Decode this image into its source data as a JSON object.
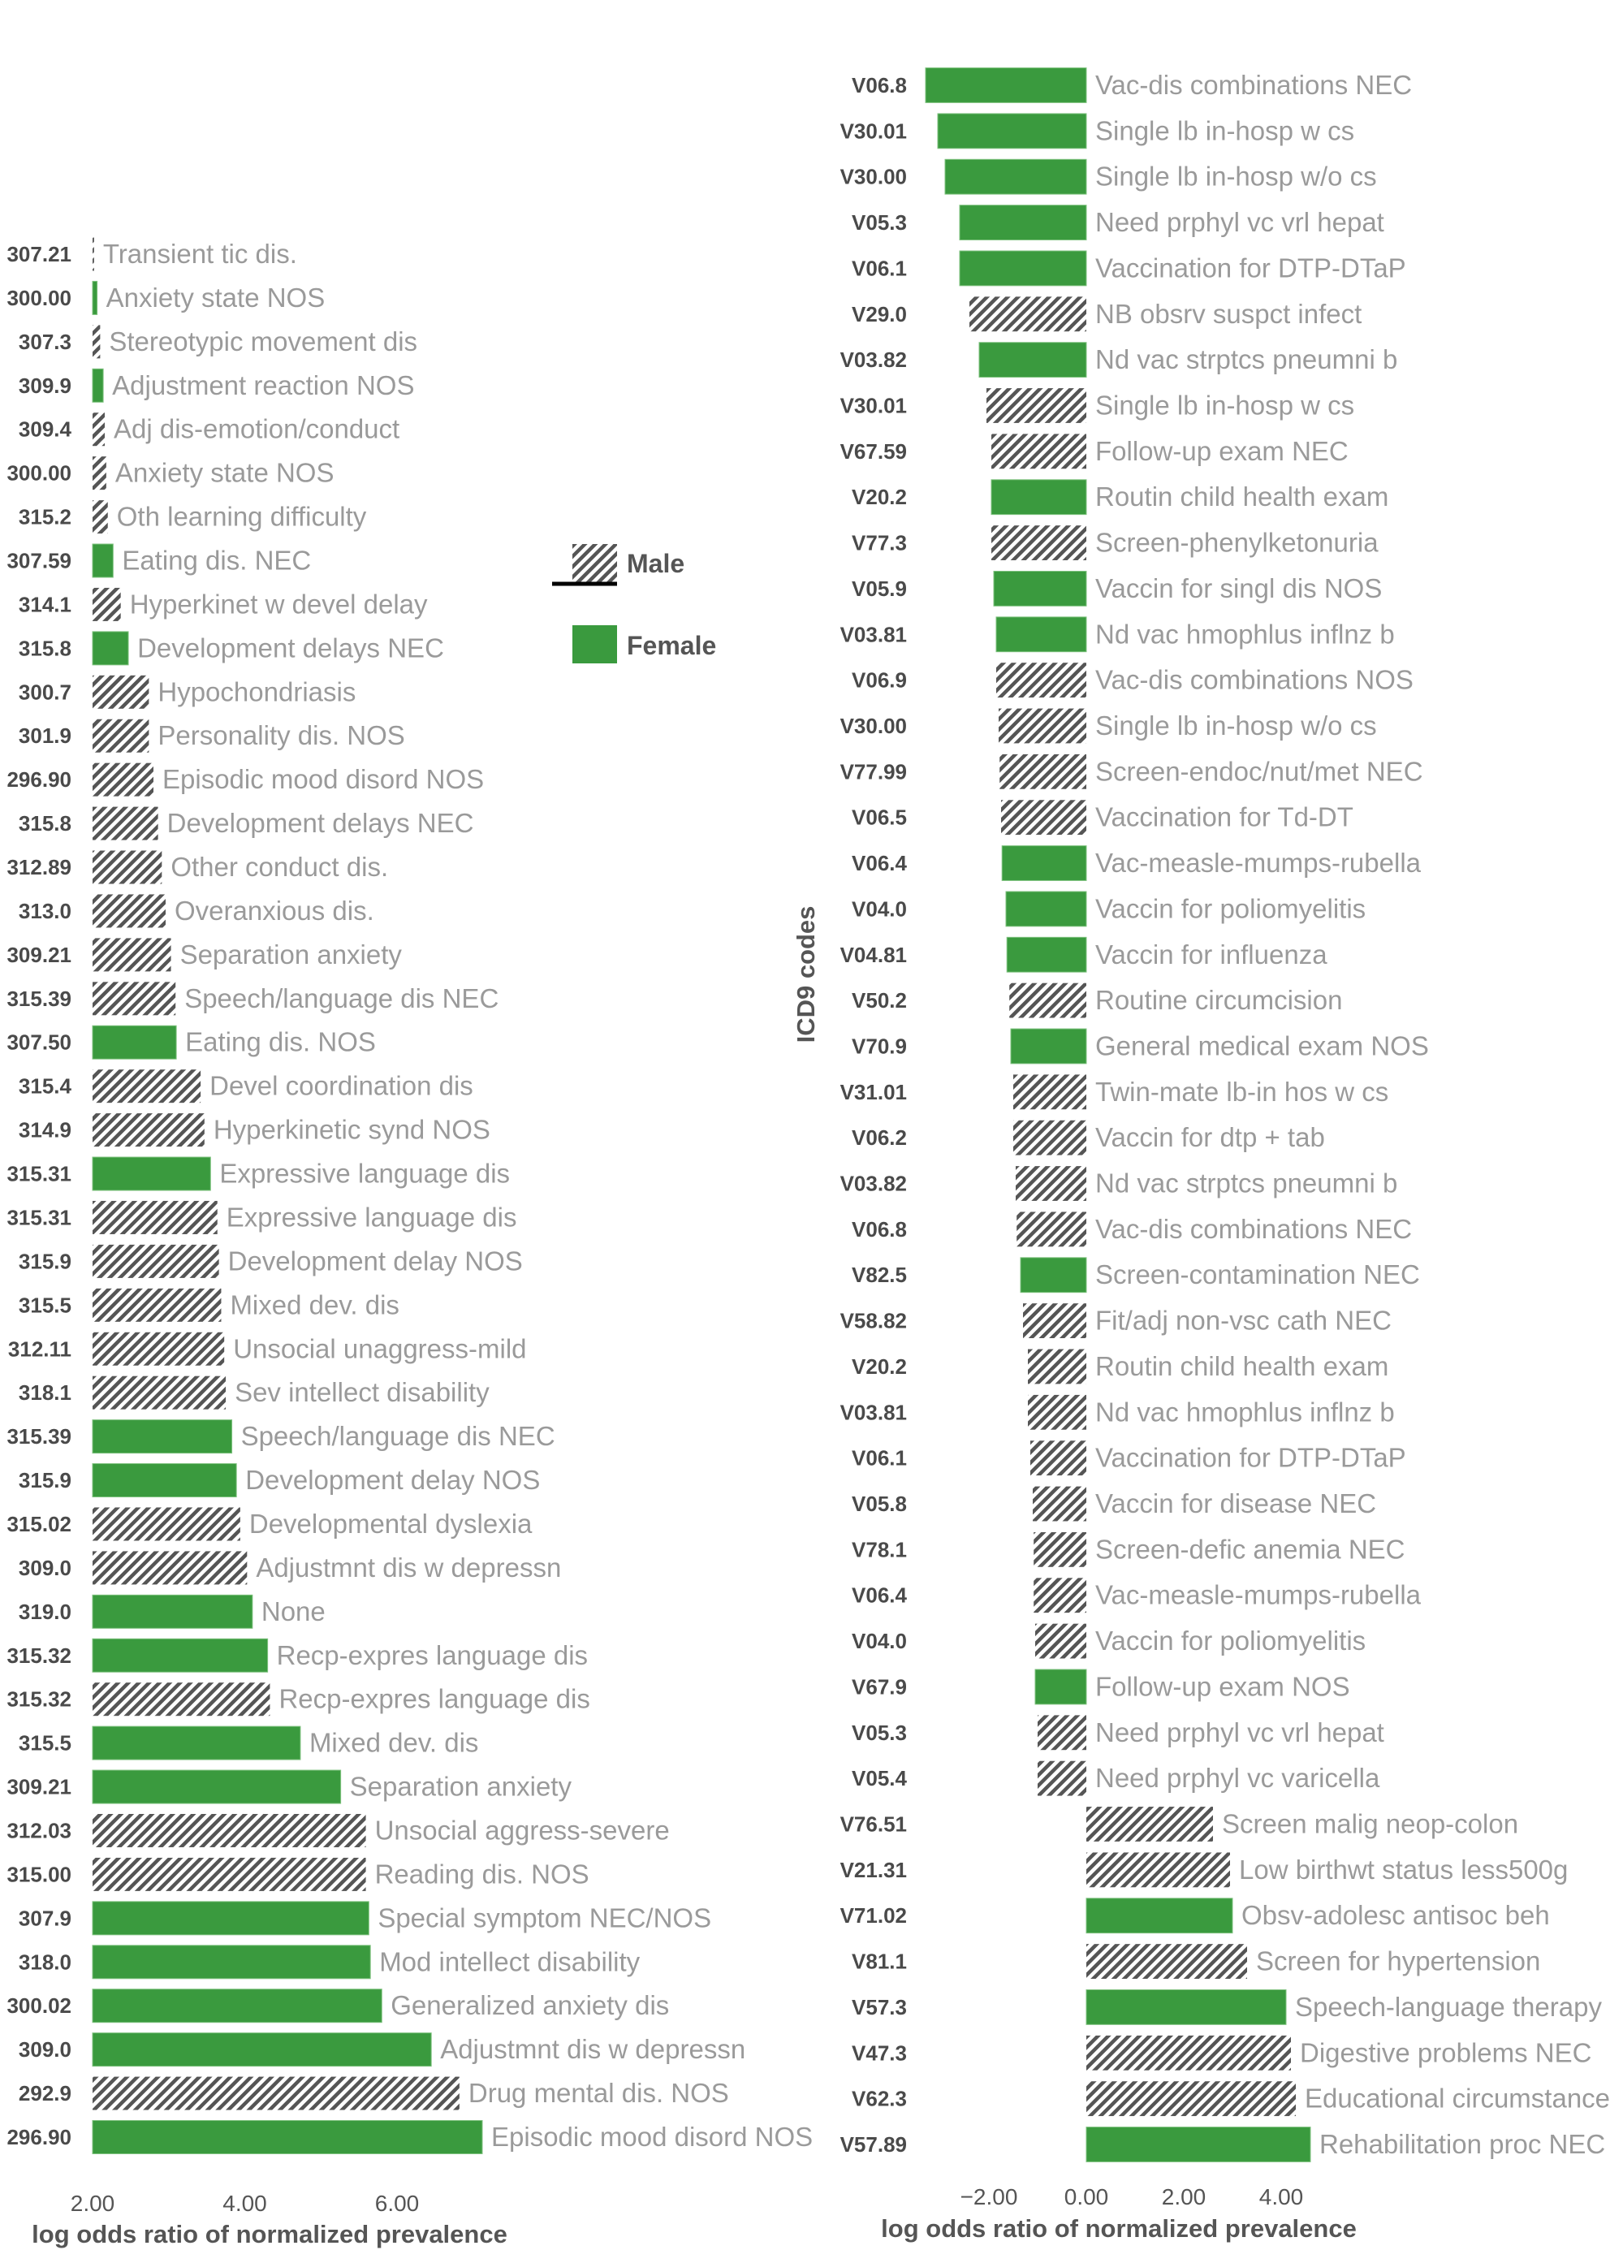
{
  "legend": {
    "male_label": "Male",
    "female_label": "Female",
    "position": "right of left panel, upper-middle"
  },
  "colors": {
    "female": "#3a9a3e",
    "male_hatch": "#555555",
    "code_text": "#4a4a4a",
    "label_text": "#9a9a9a"
  },
  "chart_data": [
    {
      "type": "bar",
      "orientation": "horizontal",
      "xlabel": "log odds ratio of normalized prevalence",
      "x_ticks": [
        "2.00",
        "4.00",
        "6.00"
      ],
      "xlim": [
        2.0,
        7.0
      ],
      "bars": [
        {
          "code": "307.21",
          "label": "Transient tic dis.",
          "sex": "male",
          "value": 2.02
        },
        {
          "code": "300.00",
          "label": "Anxiety state NOS",
          "sex": "female",
          "value": 2.06
        },
        {
          "code": "307.3",
          "label": "Stereotypic movement dis",
          "sex": "male",
          "value": 2.1
        },
        {
          "code": "309.9",
          "label": "Adjustment reaction NOS",
          "sex": "female",
          "value": 2.14
        },
        {
          "code": "309.4",
          "label": "Adj dis-emotion/conduct",
          "sex": "male",
          "value": 2.16
        },
        {
          "code": "300.00",
          "label": "Anxiety state NOS",
          "sex": "male",
          "value": 2.18
        },
        {
          "code": "315.2",
          "label": "Oth learning difficulty",
          "sex": "male",
          "value": 2.2
        },
        {
          "code": "307.59",
          "label": "Eating dis. NEC",
          "sex": "female",
          "value": 2.27
        },
        {
          "code": "314.1",
          "label": "Hyperkinet w devel delay",
          "sex": "male",
          "value": 2.37
        },
        {
          "code": "315.8",
          "label": "Development delays NEC",
          "sex": "female",
          "value": 2.47
        },
        {
          "code": "300.7",
          "label": "Hypochondriasis",
          "sex": "male",
          "value": 2.74
        },
        {
          "code": "301.9",
          "label": "Personality dis. NOS",
          "sex": "male",
          "value": 2.74
        },
        {
          "code": "296.90",
          "label": "Episodic mood disord NOS",
          "sex": "male",
          "value": 2.8
        },
        {
          "code": "315.8",
          "label": "Development delays NEC",
          "sex": "male",
          "value": 2.86
        },
        {
          "code": "312.89",
          "label": "Other conduct dis.",
          "sex": "male",
          "value": 2.91
        },
        {
          "code": "313.0",
          "label": "Overanxious dis.",
          "sex": "male",
          "value": 2.96
        },
        {
          "code": "309.21",
          "label": "Separation anxiety",
          "sex": "male",
          "value": 3.03
        },
        {
          "code": "315.39",
          "label": "Speech/language dis NEC",
          "sex": "male",
          "value": 3.09
        },
        {
          "code": "307.50",
          "label": "Eating dis. NOS",
          "sex": "female",
          "value": 3.1
        },
        {
          "code": "315.4",
          "label": "Devel coordination dis",
          "sex": "male",
          "value": 3.42
        },
        {
          "code": "314.9",
          "label": "Hyperkinetic synd NOS",
          "sex": "male",
          "value": 3.47
        },
        {
          "code": "315.31",
          "label": "Expressive language dis",
          "sex": "female",
          "value": 3.55
        },
        {
          "code": "315.31",
          "label": "Expressive language dis",
          "sex": "male",
          "value": 3.64
        },
        {
          "code": "315.9",
          "label": "Development delay NOS",
          "sex": "male",
          "value": 3.66
        },
        {
          "code": "315.5",
          "label": "Mixed dev. dis",
          "sex": "male",
          "value": 3.69
        },
        {
          "code": "312.11",
          "label": "Unsocial unaggress-mild",
          "sex": "male",
          "value": 3.73
        },
        {
          "code": "318.1",
          "label": "Sev intellect disability",
          "sex": "male",
          "value": 3.75
        },
        {
          "code": "315.39",
          "label": "Speech/language dis NEC",
          "sex": "female",
          "value": 3.83
        },
        {
          "code": "315.9",
          "label": "Development delay NOS",
          "sex": "female",
          "value": 3.89
        },
        {
          "code": "315.02",
          "label": "Developmental dyslexia",
          "sex": "male",
          "value": 3.94
        },
        {
          "code": "309.0",
          "label": "Adjustmnt dis w depressn",
          "sex": "male",
          "value": 4.03
        },
        {
          "code": "319.0",
          "label": "None",
          "sex": "female",
          "value": 4.1
        },
        {
          "code": "315.32",
          "label": "Recp-expres language dis",
          "sex": "female",
          "value": 4.3
        },
        {
          "code": "315.32",
          "label": "Recp-expres language dis",
          "sex": "male",
          "value": 4.33
        },
        {
          "code": "315.5",
          "label": "Mixed dev. dis",
          "sex": "female",
          "value": 4.73
        },
        {
          "code": "309.21",
          "label": "Separation anxiety",
          "sex": "female",
          "value": 5.26
        },
        {
          "code": "312.03",
          "label": "Unsocial aggress-severe",
          "sex": "male",
          "value": 5.59
        },
        {
          "code": "315.00",
          "label": "Reading dis. NOS",
          "sex": "male",
          "value": 5.59
        },
        {
          "code": "307.9",
          "label": "Special symptom NEC/NOS",
          "sex": "female",
          "value": 5.63
        },
        {
          "code": "318.0",
          "label": "Mod intellect disability",
          "sex": "female",
          "value": 5.65
        },
        {
          "code": "300.02",
          "label": "Generalized anxiety dis",
          "sex": "female",
          "value": 5.8
        },
        {
          "code": "309.0",
          "label": "Adjustmnt dis w depressn",
          "sex": "female",
          "value": 6.45
        },
        {
          "code": "292.9",
          "label": "Drug mental dis. NOS",
          "sex": "male",
          "value": 6.82
        },
        {
          "code": "296.90",
          "label": "Episodic mood disord NOS",
          "sex": "female",
          "value": 7.12
        }
      ]
    },
    {
      "type": "bar",
      "orientation": "horizontal",
      "ylabel": "ICD9 codes",
      "xlabel": "log odds ratio of normalized prevalence",
      "x_ticks": [
        "−2.00",
        "0.00",
        "2.00",
        "4.00"
      ],
      "xlim": [
        -3.3,
        5.3
      ],
      "bars": [
        {
          "code": "V06.8",
          "label": "Vac-dis combinations NEC",
          "sex": "female",
          "value": -3.3
        },
        {
          "code": "V30.01",
          "label": "Single lb in-hosp w cs",
          "sex": "female",
          "value": -3.05
        },
        {
          "code": "V30.00",
          "label": "Single lb in-hosp w/o cs",
          "sex": "female",
          "value": -2.9
        },
        {
          "code": "V05.3",
          "label": "Need prphyl vc vrl hepat",
          "sex": "female",
          "value": -2.6
        },
        {
          "code": "V06.1",
          "label": "Vaccination for DTP-DTaP",
          "sex": "female",
          "value": -2.6
        },
        {
          "code": "V29.0",
          "label": "NB obsrv suspct infect",
          "sex": "male",
          "value": -2.4
        },
        {
          "code": "V03.82",
          "label": "Nd vac strptcs pneumni b",
          "sex": "female",
          "value": -2.2
        },
        {
          "code": "V30.01",
          "label": "Single lb in-hosp w cs",
          "sex": "male",
          "value": -2.05
        },
        {
          "code": "V67.59",
          "label": "Follow-up exam NEC",
          "sex": "male",
          "value": -1.95
        },
        {
          "code": "V20.2",
          "label": "Routin child health exam",
          "sex": "female",
          "value": -1.95
        },
        {
          "code": "V77.3",
          "label": "Screen-phenylketonuria",
          "sex": "male",
          "value": -1.95
        },
        {
          "code": "V05.9",
          "label": "Vaccin for singl dis NOS",
          "sex": "female",
          "value": -1.9
        },
        {
          "code": "V03.81",
          "label": "Nd vac hmophlus inflnz b",
          "sex": "female",
          "value": -1.85
        },
        {
          "code": "V06.9",
          "label": "Vac-dis combinations NOS",
          "sex": "male",
          "value": -1.85
        },
        {
          "code": "V30.00",
          "label": "Single lb in-hosp w/o cs",
          "sex": "male",
          "value": -1.8
        },
        {
          "code": "V77.99",
          "label": "Screen-endoc/nut/met NEC",
          "sex": "male",
          "value": -1.78
        },
        {
          "code": "V06.5",
          "label": "Vaccination for Td-DT",
          "sex": "male",
          "value": -1.75
        },
        {
          "code": "V06.4",
          "label": "Vac-measle-mumps-rubella",
          "sex": "female",
          "value": -1.73
        },
        {
          "code": "V04.0",
          "label": "Vaccin for poliomyelitis",
          "sex": "female",
          "value": -1.65
        },
        {
          "code": "V04.81",
          "label": "Vaccin for influenza",
          "sex": "female",
          "value": -1.63
        },
        {
          "code": "V50.2",
          "label": "Routine circumcision",
          "sex": "male",
          "value": -1.58
        },
        {
          "code": "V70.9",
          "label": "General medical exam NOS",
          "sex": "female",
          "value": -1.55
        },
        {
          "code": "V31.01",
          "label": "Twin-mate lb-in hos w cs",
          "sex": "male",
          "value": -1.5
        },
        {
          "code": "V06.2",
          "label": "Vaccin for dtp + tab",
          "sex": "male",
          "value": -1.5
        },
        {
          "code": "V03.82",
          "label": "Nd vac strptcs pneumni b",
          "sex": "male",
          "value": -1.45
        },
        {
          "code": "V06.8",
          "label": "Vac-dis combinations NEC",
          "sex": "male",
          "value": -1.43
        },
        {
          "code": "V82.5",
          "label": "Screen-contamination NEC",
          "sex": "female",
          "value": -1.35
        },
        {
          "code": "V58.82",
          "label": "Fit/adj non-vsc cath NEC",
          "sex": "male",
          "value": -1.3
        },
        {
          "code": "V20.2",
          "label": "Routin child health exam",
          "sex": "male",
          "value": -1.2
        },
        {
          "code": "V03.81",
          "label": "Nd vac hmophlus inflnz b",
          "sex": "male",
          "value": -1.2
        },
        {
          "code": "V06.1",
          "label": "Vaccination for DTP-DTaP",
          "sex": "male",
          "value": -1.15
        },
        {
          "code": "V05.8",
          "label": "Vaccin for disease NEC",
          "sex": "male",
          "value": -1.1
        },
        {
          "code": "V78.1",
          "label": "Screen-defic anemia NEC",
          "sex": "male",
          "value": -1.08
        },
        {
          "code": "V06.4",
          "label": "Vac-measle-mumps-rubella",
          "sex": "male",
          "value": -1.08
        },
        {
          "code": "V04.0",
          "label": "Vaccin for poliomyelitis",
          "sex": "male",
          "value": -1.05
        },
        {
          "code": "V67.9",
          "label": "Follow-up exam NOS",
          "sex": "female",
          "value": -1.05
        },
        {
          "code": "V05.3",
          "label": "Need prphyl vc vrl hepat",
          "sex": "male",
          "value": -1.0
        },
        {
          "code": "V05.4",
          "label": "Need prphyl vc varicella",
          "sex": "male",
          "value": -1.0
        },
        {
          "code": "V76.51",
          "label": "Screen malig neop-colon",
          "sex": "male",
          "value": 2.6
        },
        {
          "code": "V21.31",
          "label": "Low birthwt status less500g",
          "sex": "male",
          "value": 2.95
        },
        {
          "code": "V71.02",
          "label": "Obsv-adolesc antisoc beh",
          "sex": "female",
          "value": 3.0
        },
        {
          "code": "V81.1",
          "label": "Screen for hypertension",
          "sex": "male",
          "value": 3.3
        },
        {
          "code": "V57.3",
          "label": "Speech-language therapy",
          "sex": "female",
          "value": 4.1
        },
        {
          "code": "V47.3",
          "label": "Digestive problems NEC",
          "sex": "male",
          "value": 4.2
        },
        {
          "code": "V62.3",
          "label": "Educational circumstance",
          "sex": "male",
          "value": 4.3
        },
        {
          "code": "V57.89",
          "label": "Rehabilitation proc NEC",
          "sex": "female",
          "value": 4.6
        }
      ]
    }
  ]
}
